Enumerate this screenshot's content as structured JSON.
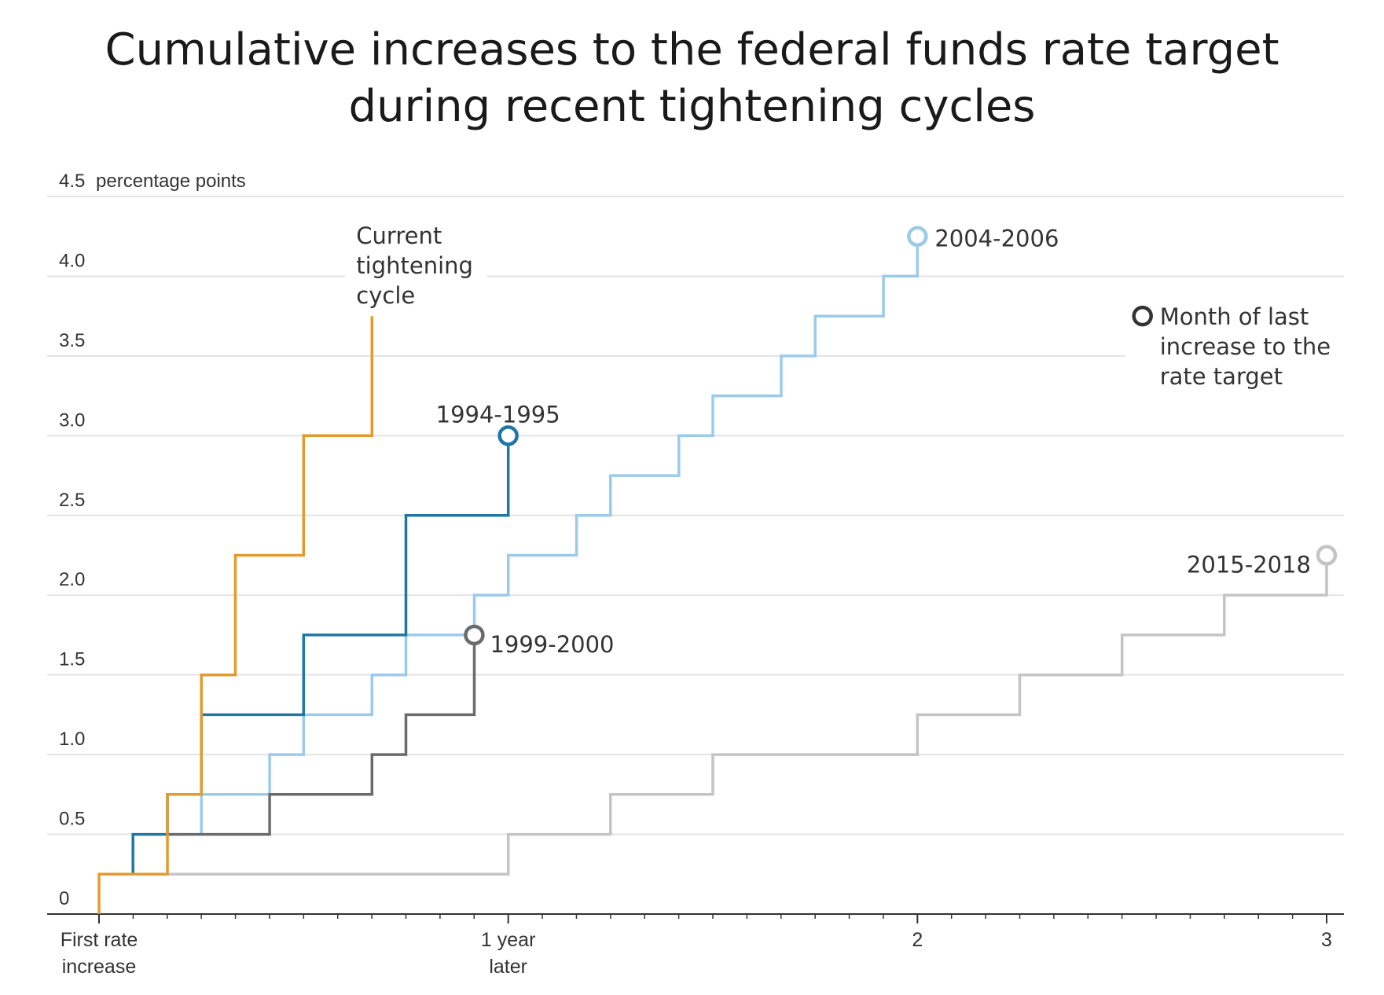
{
  "chart_data": {
    "type": "line",
    "title_lines": [
      "Cumulative increases to the federal funds rate target",
      "during recent tightening cycles"
    ],
    "ylabel": "percentage points",
    "ylim": [
      0,
      4.5
    ],
    "xlim": [
      0,
      3
    ],
    "y_ticks": [
      {
        "value": 0,
        "label": "0"
      },
      {
        "value": 0.5,
        "label": "0.5"
      },
      {
        "value": 1.0,
        "label": "1.0"
      },
      {
        "value": 1.5,
        "label": "1.5"
      },
      {
        "value": 2.0,
        "label": "2.0"
      },
      {
        "value": 2.5,
        "label": "2.5"
      },
      {
        "value": 3.0,
        "label": "3.0"
      },
      {
        "value": 3.5,
        "label": "3.5"
      },
      {
        "value": 4.0,
        "label": "4.0"
      },
      {
        "value": 4.5,
        "label": "4.5"
      }
    ],
    "x_ticks": [
      {
        "value": 0,
        "lines": [
          "First rate",
          "increase"
        ]
      },
      {
        "value": 1,
        "lines": [
          "1 year",
          "later"
        ]
      },
      {
        "value": 2,
        "lines": [
          "2"
        ]
      },
      {
        "value": 3,
        "lines": [
          "3"
        ]
      }
    ],
    "x_unit": "years since first rate increase",
    "grid": true,
    "series": [
      {
        "name": "2015-2018",
        "color": "#c4c4c4",
        "steps": [
          [
            0,
            0.25
          ],
          [
            1.0,
            0.5
          ],
          [
            1.25,
            0.75
          ],
          [
            1.5,
            1.0
          ],
          [
            2.0,
            1.25
          ],
          [
            2.25,
            1.5
          ],
          [
            2.5,
            1.75
          ],
          [
            2.75,
            2.0
          ],
          [
            3.0,
            2.25
          ]
        ],
        "marker": true
      },
      {
        "name": "2004-2006",
        "color": "#9bcbeb",
        "steps": [
          [
            0.25,
            0.5
          ],
          [
            0.25,
            0.75
          ],
          [
            0.417,
            1.0
          ],
          [
            0.5,
            1.25
          ],
          [
            0.667,
            1.5
          ],
          [
            0.75,
            1.75
          ],
          [
            0.917,
            2.0
          ],
          [
            1.0,
            2.25
          ],
          [
            1.167,
            2.5
          ],
          [
            1.25,
            2.75
          ],
          [
            1.417,
            3.0
          ],
          [
            1.5,
            3.25
          ],
          [
            1.667,
            3.5
          ],
          [
            1.75,
            3.75
          ],
          [
            1.917,
            4.0
          ],
          [
            2.0,
            4.25
          ]
        ],
        "marker": true
      },
      {
        "name": "1999-2000",
        "color": "#6b6b6b",
        "steps": [
          [
            0.167,
            0.5
          ],
          [
            0.417,
            0.75
          ],
          [
            0.667,
            1.0
          ],
          [
            0.75,
            1.25
          ],
          [
            0.917,
            1.75
          ]
        ],
        "marker": true
      },
      {
        "name": "1994-1995",
        "color": "#1f77a5",
        "steps": [
          [
            0.083,
            0.25
          ],
          [
            0.083,
            0.5
          ],
          [
            0.167,
            0.75
          ],
          [
            0.25,
            1.25
          ],
          [
            0.5,
            1.75
          ],
          [
            0.75,
            2.5
          ],
          [
            1.0,
            3.0
          ]
        ],
        "marker": true
      },
      {
        "name": "Current tightening cycle",
        "color": "#e39b2d",
        "steps": [
          [
            0,
            0
          ],
          [
            0,
            0.25
          ],
          [
            0.167,
            0.75
          ],
          [
            0.25,
            1.5
          ],
          [
            0.333,
            2.25
          ],
          [
            0.5,
            3.0
          ],
          [
            0.667,
            3.75
          ]
        ],
        "marker": false
      }
    ],
    "annotations": [
      {
        "series": "Current tightening cycle",
        "lines": [
          "Current",
          "tightening",
          "cycle"
        ]
      },
      {
        "series": "2004-2006",
        "lines": [
          "2004-2006"
        ]
      },
      {
        "series": "1994-1995",
        "lines": [
          "1994-1995"
        ]
      },
      {
        "series": "1999-2000",
        "lines": [
          "1999-2000"
        ]
      },
      {
        "series": "2015-2018",
        "lines": [
          "2015-2018"
        ]
      }
    ],
    "legend": {
      "symbol": "open-circle",
      "lines": [
        "Month of last",
        "increase to the",
        "rate target"
      ],
      "placement": "right"
    }
  }
}
